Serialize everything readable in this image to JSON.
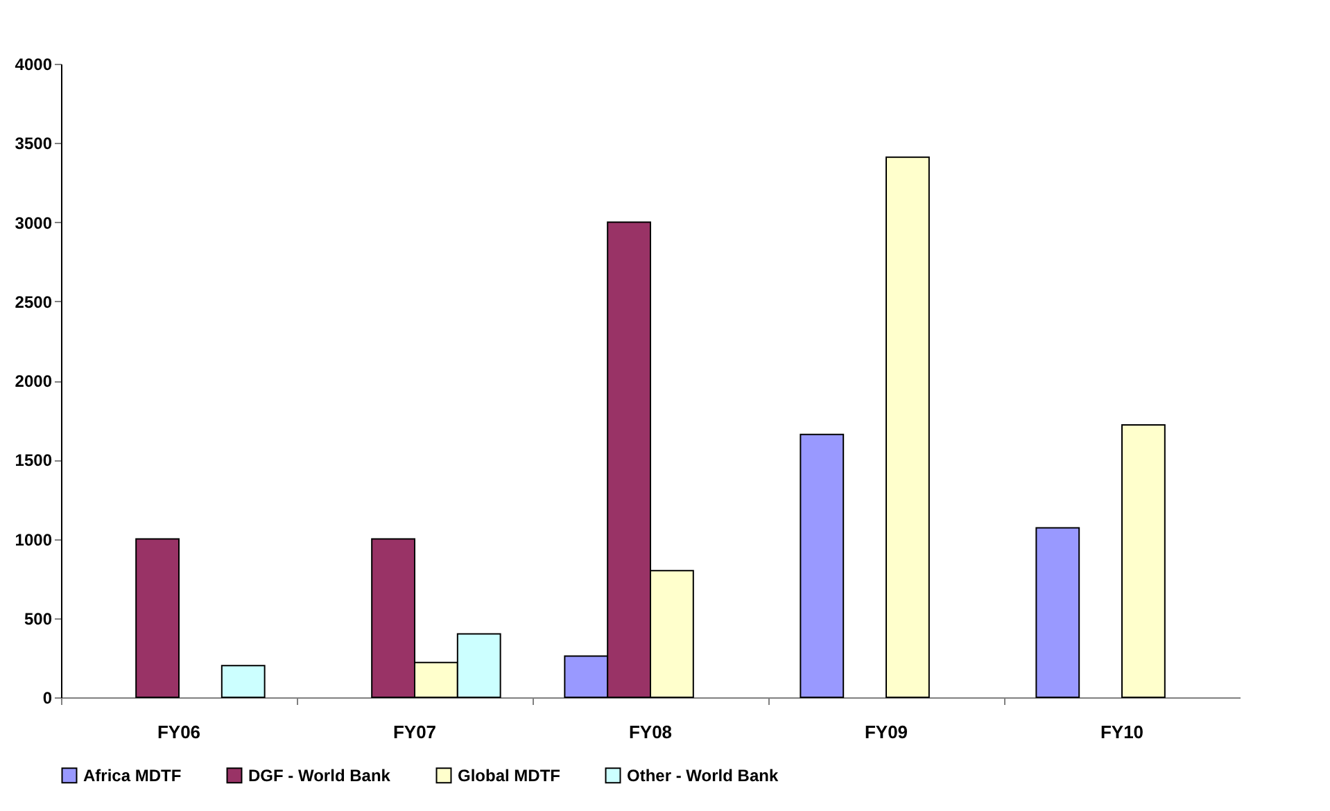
{
  "chart_data": {
    "type": "bar",
    "categories": [
      "FY06",
      "FY07",
      "FY08",
      "FY09",
      "FY10"
    ],
    "series": [
      {
        "name": "Africa MDTF",
        "color": "#9999ff",
        "values": [
          null,
          null,
          260,
          1660,
          1070
        ]
      },
      {
        "name": "DGF - World Bank",
        "color": "#993366",
        "values": [
          1000,
          1000,
          3000,
          null,
          null
        ]
      },
      {
        "name": "Global MDTF",
        "color": "#ffffcc",
        "values": [
          null,
          220,
          800,
          3410,
          1720
        ]
      },
      {
        "name": "Other - World Bank",
        "color": "#ccffff",
        "values": [
          200,
          400,
          null,
          null,
          null
        ]
      }
    ],
    "ylim": [
      0,
      4000
    ],
    "yticks": [
      0,
      500,
      1000,
      1500,
      2000,
      2500,
      3000,
      3500,
      4000
    ],
    "grid": false,
    "legend": "bottom"
  }
}
